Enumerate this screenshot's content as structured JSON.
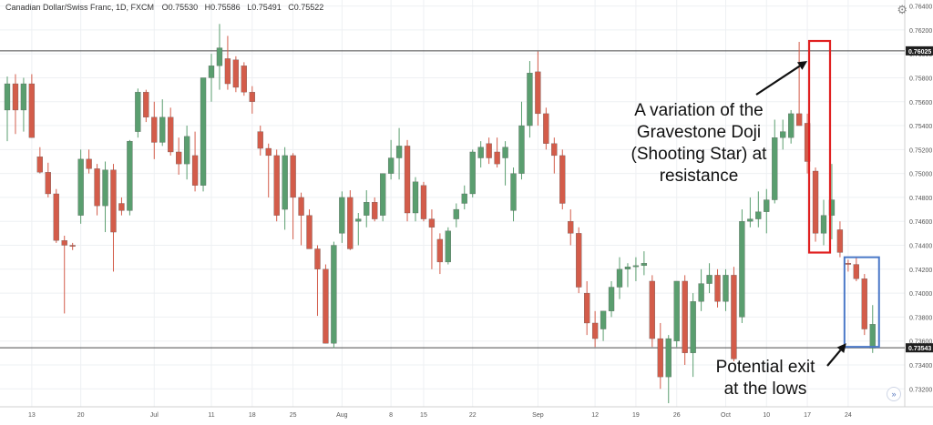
{
  "header": {
    "symbol": "Canadian Dollar/Swiss Franc, 1D, FXCM",
    "open": "O0.75530",
    "high": "H0.75586",
    "low": "L0.75491",
    "close": "C0.75522"
  },
  "annotations": {
    "doji": [
      "A variation of the",
      "Gravestone Doji",
      "(Shooting Star) at",
      "resistance"
    ],
    "exit": [
      "Potential exit",
      "at the lows"
    ]
  },
  "price_labels": {
    "resistance": "0.76025",
    "support": "0.73543"
  },
  "colors": {
    "up": "#5a9e6f",
    "down": "#d35c4a",
    "resistance_box": "#e02020",
    "exit_box": "#4a78c8"
  },
  "chart_data": {
    "type": "candlestick",
    "title": "Canadian Dollar/Swiss Franc, 1D, FXCM",
    "ylim": [
      0.7305,
      0.7645
    ],
    "y_ticks": [
      "0.76400",
      "0.76200",
      "0.76000",
      "0.75800",
      "0.75600",
      "0.75400",
      "0.75200",
      "0.75000",
      "0.74800",
      "0.74600",
      "0.74400",
      "0.74200",
      "0.74000",
      "0.73800",
      "0.73600",
      "0.73400",
      "0.73200"
    ],
    "x_ticks": [
      "13",
      "20",
      "Jul",
      "11",
      "18",
      "25",
      "Aug",
      "8",
      "15",
      "22",
      "Sep",
      "12",
      "19",
      "26",
      "Oct",
      "10",
      "17",
      "24"
    ],
    "resistance_level": 0.76025,
    "support_level": 0.73543,
    "grid": true,
    "candles": [
      {
        "o": 0.7553,
        "h": 0.7581,
        "l": 0.7527,
        "c": 0.7575
      },
      {
        "o": 0.7575,
        "h": 0.7583,
        "l": 0.7533,
        "c": 0.7553
      },
      {
        "o": 0.7553,
        "h": 0.758,
        "l": 0.7535,
        "c": 0.7575
      },
      {
        "o": 0.7575,
        "h": 0.7583,
        "l": 0.753,
        "c": 0.753
      },
      {
        "o": 0.7514,
        "h": 0.7522,
        "l": 0.75,
        "c": 0.7501
      },
      {
        "o": 0.7501,
        "h": 0.7509,
        "l": 0.748,
        "c": 0.7483
      },
      {
        "o": 0.7483,
        "h": 0.7487,
        "l": 0.7442,
        "c": 0.7444
      },
      {
        "o": 0.7444,
        "h": 0.7448,
        "l": 0.7383,
        "c": 0.744
      },
      {
        "o": 0.744,
        "h": 0.7442,
        "l": 0.7436,
        "c": 0.7439
      },
      {
        "o": 0.7465,
        "h": 0.752,
        "l": 0.7458,
        "c": 0.7512
      },
      {
        "o": 0.7512,
        "h": 0.752,
        "l": 0.75,
        "c": 0.7504
      },
      {
        "o": 0.7504,
        "h": 0.7508,
        "l": 0.7465,
        "c": 0.7473
      },
      {
        "o": 0.7473,
        "h": 0.751,
        "l": 0.7451,
        "c": 0.7503
      },
      {
        "o": 0.7503,
        "h": 0.7508,
        "l": 0.7418,
        "c": 0.7451
      },
      {
        "o": 0.7475,
        "h": 0.748,
        "l": 0.7465,
        "c": 0.7469
      },
      {
        "o": 0.7469,
        "h": 0.7528,
        "l": 0.7465,
        "c": 0.7527
      },
      {
        "o": 0.7535,
        "h": 0.7571,
        "l": 0.753,
        "c": 0.7568
      },
      {
        "o": 0.7568,
        "h": 0.757,
        "l": 0.7543,
        "c": 0.7547
      },
      {
        "o": 0.7547,
        "h": 0.756,
        "l": 0.7512,
        "c": 0.7526
      },
      {
        "o": 0.7526,
        "h": 0.7562,
        "l": 0.7523,
        "c": 0.7547
      },
      {
        "o": 0.7547,
        "h": 0.7555,
        "l": 0.7515,
        "c": 0.7518
      },
      {
        "o": 0.7518,
        "h": 0.753,
        "l": 0.7499,
        "c": 0.7508
      },
      {
        "o": 0.7508,
        "h": 0.754,
        "l": 0.7495,
        "c": 0.7531
      },
      {
        "o": 0.7515,
        "h": 0.7535,
        "l": 0.7485,
        "c": 0.749
      },
      {
        "o": 0.749,
        "h": 0.758,
        "l": 0.7485,
        "c": 0.758
      },
      {
        "o": 0.758,
        "h": 0.76,
        "l": 0.756,
        "c": 0.759
      },
      {
        "o": 0.759,
        "h": 0.7625,
        "l": 0.757,
        "c": 0.7605
      },
      {
        "o": 0.7596,
        "h": 0.7615,
        "l": 0.757,
        "c": 0.7575
      },
      {
        "o": 0.7595,
        "h": 0.7598,
        "l": 0.7568,
        "c": 0.7572
      },
      {
        "o": 0.759,
        "h": 0.7593,
        "l": 0.7565,
        "c": 0.7568
      },
      {
        "o": 0.7568,
        "h": 0.7573,
        "l": 0.755,
        "c": 0.756
      },
      {
        "o": 0.7535,
        "h": 0.754,
        "l": 0.7515,
        "c": 0.7521
      },
      {
        "o": 0.7521,
        "h": 0.7525,
        "l": 0.748,
        "c": 0.7515
      },
      {
        "o": 0.7515,
        "h": 0.752,
        "l": 0.746,
        "c": 0.7465
      },
      {
        "o": 0.747,
        "h": 0.7522,
        "l": 0.7453,
        "c": 0.7515
      },
      {
        "o": 0.7515,
        "h": 0.7517,
        "l": 0.7445,
        "c": 0.748
      },
      {
        "o": 0.748,
        "h": 0.7484,
        "l": 0.744,
        "c": 0.7465
      },
      {
        "o": 0.7465,
        "h": 0.747,
        "l": 0.7438,
        "c": 0.7437
      },
      {
        "o": 0.7437,
        "h": 0.744,
        "l": 0.7381,
        "c": 0.742
      },
      {
        "o": 0.742,
        "h": 0.7424,
        "l": 0.7358,
        "c": 0.7358
      },
      {
        "o": 0.7358,
        "h": 0.7443,
        "l": 0.7354,
        "c": 0.744
      },
      {
        "o": 0.745,
        "h": 0.7485,
        "l": 0.7442,
        "c": 0.748
      },
      {
        "o": 0.748,
        "h": 0.7486,
        "l": 0.7436,
        "c": 0.7437
      },
      {
        "o": 0.746,
        "h": 0.7467,
        "l": 0.744,
        "c": 0.7462
      },
      {
        "o": 0.7465,
        "h": 0.7486,
        "l": 0.7455,
        "c": 0.7476
      },
      {
        "o": 0.7476,
        "h": 0.748,
        "l": 0.746,
        "c": 0.7462
      },
      {
        "o": 0.7465,
        "h": 0.75,
        "l": 0.746,
        "c": 0.75
      },
      {
        "o": 0.75,
        "h": 0.7528,
        "l": 0.7495,
        "c": 0.7513
      },
      {
        "o": 0.7513,
        "h": 0.7538,
        "l": 0.7495,
        "c": 0.7523
      },
      {
        "o": 0.7523,
        "h": 0.7528,
        "l": 0.746,
        "c": 0.7467
      },
      {
        "o": 0.7467,
        "h": 0.7497,
        "l": 0.746,
        "c": 0.7493
      },
      {
        "o": 0.749,
        "h": 0.7493,
        "l": 0.746,
        "c": 0.7462
      },
      {
        "o": 0.7462,
        "h": 0.747,
        "l": 0.742,
        "c": 0.7455
      },
      {
        "o": 0.7445,
        "h": 0.745,
        "l": 0.7416,
        "c": 0.7426
      },
      {
        "o": 0.7426,
        "h": 0.7455,
        "l": 0.7424,
        "c": 0.7452
      },
      {
        "o": 0.7462,
        "h": 0.7475,
        "l": 0.7455,
        "c": 0.747
      },
      {
        "o": 0.7475,
        "h": 0.749,
        "l": 0.747,
        "c": 0.7483
      },
      {
        "o": 0.7483,
        "h": 0.752,
        "l": 0.748,
        "c": 0.7518
      },
      {
        "o": 0.7513,
        "h": 0.7527,
        "l": 0.7505,
        "c": 0.7522
      },
      {
        "o": 0.7525,
        "h": 0.753,
        "l": 0.7508,
        "c": 0.7513
      },
      {
        "o": 0.7518,
        "h": 0.753,
        "l": 0.7505,
        "c": 0.7508
      },
      {
        "o": 0.7513,
        "h": 0.7527,
        "l": 0.749,
        "c": 0.7522
      },
      {
        "o": 0.7469,
        "h": 0.7505,
        "l": 0.746,
        "c": 0.75
      },
      {
        "o": 0.75,
        "h": 0.756,
        "l": 0.7495,
        "c": 0.754
      },
      {
        "o": 0.754,
        "h": 0.7594,
        "l": 0.753,
        "c": 0.7584
      },
      {
        "o": 0.7585,
        "h": 0.7602,
        "l": 0.754,
        "c": 0.755
      },
      {
        "o": 0.755,
        "h": 0.7555,
        "l": 0.752,
        "c": 0.7525
      },
      {
        "o": 0.7525,
        "h": 0.753,
        "l": 0.75,
        "c": 0.7515
      },
      {
        "o": 0.7515,
        "h": 0.752,
        "l": 0.747,
        "c": 0.7475
      },
      {
        "o": 0.746,
        "h": 0.747,
        "l": 0.744,
        "c": 0.745
      },
      {
        "o": 0.745,
        "h": 0.7455,
        "l": 0.74,
        "c": 0.7405
      },
      {
        "o": 0.74,
        "h": 0.741,
        "l": 0.7365,
        "c": 0.7375
      },
      {
        "o": 0.7375,
        "h": 0.7385,
        "l": 0.7355,
        "c": 0.7362
      },
      {
        "o": 0.737,
        "h": 0.7385,
        "l": 0.736,
        "c": 0.7385
      },
      {
        "o": 0.7385,
        "h": 0.741,
        "l": 0.738,
        "c": 0.7405
      },
      {
        "o": 0.7405,
        "h": 0.743,
        "l": 0.7395,
        "c": 0.742
      },
      {
        "o": 0.742,
        "h": 0.7425,
        "l": 0.7405,
        "c": 0.7422
      },
      {
        "o": 0.7422,
        "h": 0.743,
        "l": 0.741,
        "c": 0.7423
      },
      {
        "o": 0.7423,
        "h": 0.7435,
        "l": 0.7415,
        "c": 0.7425
      },
      {
        "o": 0.741,
        "h": 0.7415,
        "l": 0.7355,
        "c": 0.7362
      },
      {
        "o": 0.7362,
        "h": 0.7375,
        "l": 0.732,
        "c": 0.733
      },
      {
        "o": 0.733,
        "h": 0.7365,
        "l": 0.7308,
        "c": 0.7362
      },
      {
        "o": 0.736,
        "h": 0.741,
        "l": 0.7355,
        "c": 0.741
      },
      {
        "o": 0.741,
        "h": 0.7415,
        "l": 0.734,
        "c": 0.735
      },
      {
        "o": 0.735,
        "h": 0.74,
        "l": 0.733,
        "c": 0.7393
      },
      {
        "o": 0.7393,
        "h": 0.742,
        "l": 0.7385,
        "c": 0.7408
      },
      {
        "o": 0.7408,
        "h": 0.7425,
        "l": 0.74,
        "c": 0.7415
      },
      {
        "o": 0.7415,
        "h": 0.742,
        "l": 0.7388,
        "c": 0.7393
      },
      {
        "o": 0.7393,
        "h": 0.742,
        "l": 0.7385,
        "c": 0.7415
      },
      {
        "o": 0.7415,
        "h": 0.7422,
        "l": 0.7343,
        "c": 0.7345
      },
      {
        "o": 0.738,
        "h": 0.747,
        "l": 0.7375,
        "c": 0.746
      },
      {
        "o": 0.746,
        "h": 0.748,
        "l": 0.7455,
        "c": 0.7462
      },
      {
        "o": 0.7462,
        "h": 0.7485,
        "l": 0.7455,
        "c": 0.7468
      },
      {
        "o": 0.7468,
        "h": 0.7487,
        "l": 0.745,
        "c": 0.7478
      },
      {
        "o": 0.7478,
        "h": 0.7545,
        "l": 0.7475,
        "c": 0.753
      },
      {
        "o": 0.753,
        "h": 0.7545,
        "l": 0.752,
        "c": 0.7535
      },
      {
        "o": 0.753,
        "h": 0.7553,
        "l": 0.7525,
        "c": 0.755
      },
      {
        "o": 0.755,
        "h": 0.761,
        "l": 0.754,
        "c": 0.754
      },
      {
        "o": 0.7542,
        "h": 0.755,
        "l": 0.75,
        "c": 0.751
      },
      {
        "o": 0.7502,
        "h": 0.7505,
        "l": 0.7443,
        "c": 0.745
      },
      {
        "o": 0.745,
        "h": 0.7478,
        "l": 0.744,
        "c": 0.7465
      },
      {
        "o": 0.7465,
        "h": 0.7508,
        "l": 0.7445,
        "c": 0.7478
      },
      {
        "o": 0.7453,
        "h": 0.746,
        "l": 0.743,
        "c": 0.7434
      },
      {
        "o": 0.7425,
        "h": 0.7428,
        "l": 0.7418,
        "c": 0.7424
      },
      {
        "o": 0.7424,
        "h": 0.743,
        "l": 0.741,
        "c": 0.7412
      },
      {
        "o": 0.7412,
        "h": 0.7416,
        "l": 0.7365,
        "c": 0.737
      },
      {
        "o": 0.7354,
        "h": 0.739,
        "l": 0.735,
        "c": 0.7374
      }
    ]
  }
}
